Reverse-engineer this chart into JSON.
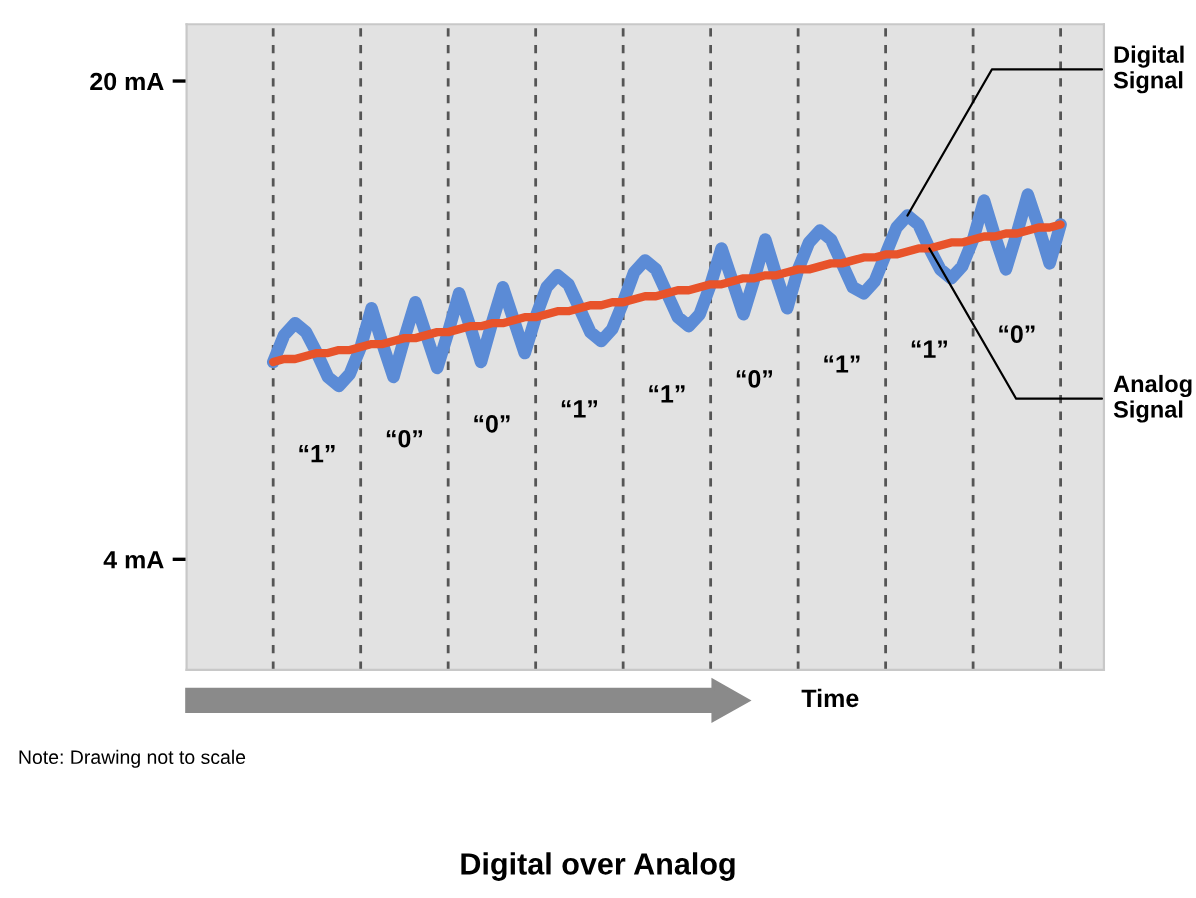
{
  "chart_data": {
    "type": "line",
    "title": "Digital over Analog",
    "xlabel": "Time",
    "categories": [
      null,
      null,
      null,
      null,
      null,
      null,
      null,
      null,
      null,
      null,
      null,
      null,
      null,
      null,
      null,
      null,
      null,
      null,
      null,
      null,
      null,
      null,
      null,
      null,
      null,
      null,
      null,
      null,
      null,
      null,
      null,
      null,
      null,
      null,
      null,
      null,
      null,
      null,
      null,
      null,
      null,
      null,
      null,
      null,
      null,
      null,
      null,
      null,
      null,
      null,
      null,
      null,
      null,
      null,
      null,
      null,
      null,
      null,
      null,
      null,
      null,
      null,
      null,
      null,
      null,
      null,
      null,
      null,
      null,
      null,
      null,
      null,
      null
    ],
    "ylim": [
      0.3,
      21.9
    ],
    "yticks": [
      {
        "value": 4,
        "label": "4 mA"
      },
      {
        "value": 20,
        "label": "20 mA"
      }
    ],
    "tick_labels": "y",
    "grid": "x",
    "legend": false,
    "marker": "none",
    "line_style": "solid",
    "series": [
      {
        "name": "Analog Signal",
        "color": "#e8532a",
        "values": [
          10.6,
          10.7,
          10.7,
          10.8,
          10.9,
          10.9,
          11.0,
          11.0,
          11.1,
          11.2,
          11.2,
          11.3,
          11.4,
          11.4,
          11.5,
          11.6,
          11.6,
          11.7,
          11.8,
          11.8,
          11.9,
          11.9,
          12.0,
          12.1,
          12.1,
          12.2,
          12.3,
          12.3,
          12.4,
          12.5,
          12.5,
          12.6,
          12.6,
          12.7,
          12.8,
          12.8,
          12.9,
          13.0,
          13.0,
          13.1,
          13.2,
          13.2,
          13.3,
          13.4,
          13.4,
          13.5,
          13.5,
          13.6,
          13.7,
          13.7,
          13.8,
          13.9,
          13.9,
          14.0,
          14.1,
          14.1,
          14.2,
          14.2,
          14.3,
          14.4,
          14.4,
          14.5,
          14.6,
          14.6,
          14.7,
          14.8,
          14.8,
          14.9,
          14.9,
          15.0,
          15.1,
          15.1,
          15.2
        ]
      },
      {
        "name": "Digital Signal",
        "color": "#5b8bd6",
        "values": [
          10.6,
          11.5,
          11.9,
          11.6,
          10.9,
          10.1,
          9.8,
          10.2,
          11.1,
          12.4,
          11.2,
          10.1,
          11.4,
          12.6,
          11.5,
          10.4,
          11.6,
          12.9,
          11.8,
          10.6,
          11.9,
          13.1,
          12.0,
          10.9,
          12.1,
          13.1,
          13.5,
          13.2,
          12.4,
          11.6,
          11.3,
          11.7,
          12.6,
          13.6,
          14.0,
          13.7,
          12.9,
          12.1,
          11.8,
          12.2,
          13.2,
          14.4,
          13.3,
          12.2,
          13.4,
          14.7,
          13.5,
          12.4,
          13.7,
          14.6,
          15.0,
          14.7,
          13.9,
          13.1,
          12.9,
          13.3,
          14.2,
          15.1,
          15.5,
          15.2,
          14.4,
          13.7,
          13.4,
          13.8,
          14.7,
          16.0,
          14.8,
          13.7,
          14.9,
          16.2,
          15.1,
          13.9,
          15.2
        ]
      }
    ],
    "annotations": [
      "“1”",
      "“0”",
      "“0”",
      "“1”",
      "“1”",
      "“0”",
      "“1”",
      "“1”",
      "“0”",
      "Note: Drawing not to scale"
    ]
  }
}
